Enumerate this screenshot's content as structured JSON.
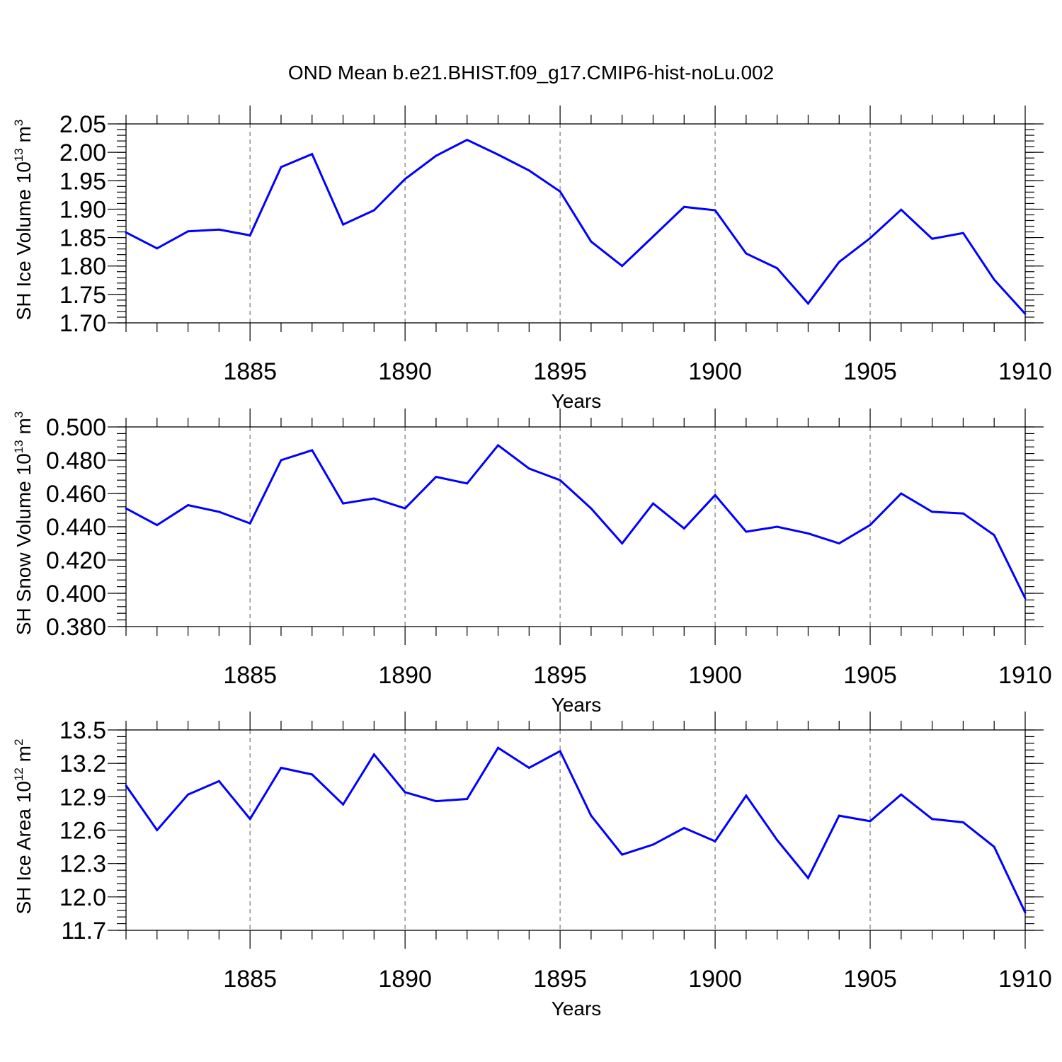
{
  "title": "OND Mean b.e21.BHIST.f09_g17.CMIP6-hist-noLu.002",
  "colors": {
    "line": "#0000ff",
    "grid": "#777777",
    "axis": "#000000"
  },
  "chart_data": [
    {
      "type": "line",
      "ylabel": "SH Ice Volume 10",
      "ylabel_exp": "13",
      "ylabel_unit": "m",
      "ylabel_unit_exp": "3",
      "xlabel": "Years",
      "xlim": [
        1881,
        1910
      ],
      "ylim": [
        1.7,
        2.05
      ],
      "yticks": [
        1.7,
        1.75,
        1.8,
        1.85,
        1.9,
        1.95,
        2.0,
        2.05
      ],
      "yticklabels": [
        "1.70",
        "1.75",
        "1.80",
        "1.85",
        "1.90",
        "1.95",
        "2.00",
        "2.05"
      ],
      "yminor": 0.01,
      "xticks": [
        1885,
        1890,
        1895,
        1900,
        1905,
        1910
      ],
      "xticklabels": [
        "1885",
        "1890",
        "1895",
        "1900",
        "1905",
        "1910"
      ],
      "x": [
        1881,
        1882,
        1883,
        1884,
        1885,
        1886,
        1887,
        1888,
        1889,
        1890,
        1891,
        1892,
        1893,
        1894,
        1895,
        1896,
        1897,
        1898,
        1899,
        1900,
        1901,
        1902,
        1903,
        1904,
        1905,
        1906,
        1907,
        1908,
        1909,
        1910
      ],
      "values": [
        1.859,
        1.831,
        1.861,
        1.864,
        1.854,
        1.974,
        1.997,
        1.873,
        1.898,
        1.953,
        1.994,
        2.022,
        1.996,
        1.968,
        1.931,
        1.843,
        1.8,
        1.852,
        1.904,
        1.898,
        1.822,
        1.796,
        1.734,
        1.807,
        1.849,
        1.899,
        1.848,
        1.858,
        1.776,
        1.716
      ]
    },
    {
      "type": "line",
      "ylabel": "SH Snow Volume 10",
      "ylabel_exp": "13",
      "ylabel_unit": "m",
      "ylabel_unit_exp": "3",
      "xlabel": "Years",
      "xlim": [
        1881,
        1910
      ],
      "ylim": [
        0.38,
        0.5
      ],
      "yticks": [
        0.38,
        0.4,
        0.42,
        0.44,
        0.46,
        0.48,
        0.5
      ],
      "yticklabels": [
        "0.380",
        "0.400",
        "0.420",
        "0.440",
        "0.460",
        "0.480",
        "0.500"
      ],
      "yminor": 0.004,
      "xticks": [
        1885,
        1890,
        1895,
        1900,
        1905,
        1910
      ],
      "xticklabels": [
        "1885",
        "1890",
        "1895",
        "1900",
        "1905",
        "1910"
      ],
      "x": [
        1881,
        1882,
        1883,
        1884,
        1885,
        1886,
        1887,
        1888,
        1889,
        1890,
        1891,
        1892,
        1893,
        1894,
        1895,
        1896,
        1897,
        1898,
        1899,
        1900,
        1901,
        1902,
        1903,
        1904,
        1905,
        1906,
        1907,
        1908,
        1909,
        1910
      ],
      "values": [
        0.451,
        0.441,
        0.453,
        0.449,
        0.442,
        0.48,
        0.486,
        0.454,
        0.457,
        0.451,
        0.47,
        0.466,
        0.489,
        0.475,
        0.468,
        0.451,
        0.43,
        0.454,
        0.439,
        0.459,
        0.437,
        0.44,
        0.436,
        0.43,
        0.441,
        0.46,
        0.449,
        0.448,
        0.435,
        0.397
      ]
    },
    {
      "type": "line",
      "ylabel": "SH Ice Area 10",
      "ylabel_exp": "12",
      "ylabel_unit": "m",
      "ylabel_unit_exp": "2",
      "xlabel": "Years",
      "xlim": [
        1881,
        1910
      ],
      "ylim": [
        11.7,
        13.5
      ],
      "yticks": [
        11.7,
        12.0,
        12.3,
        12.6,
        12.9,
        13.2,
        13.5
      ],
      "yticklabels": [
        "11.7",
        "12.0",
        "12.3",
        "12.6",
        "12.9",
        "13.2",
        "13.5"
      ],
      "yminor": 0.06,
      "xticks": [
        1885,
        1890,
        1895,
        1900,
        1905,
        1910
      ],
      "xticklabels": [
        "1885",
        "1890",
        "1895",
        "1900",
        "1905",
        "1910"
      ],
      "x": [
        1881,
        1882,
        1883,
        1884,
        1885,
        1886,
        1887,
        1888,
        1889,
        1890,
        1891,
        1892,
        1893,
        1894,
        1895,
        1896,
        1897,
        1898,
        1899,
        1900,
        1901,
        1902,
        1903,
        1904,
        1905,
        1906,
        1907,
        1908,
        1909,
        1910
      ],
      "values": [
        13.0,
        12.6,
        12.92,
        13.04,
        12.7,
        13.16,
        13.1,
        12.83,
        13.28,
        12.94,
        12.86,
        12.88,
        13.34,
        13.16,
        13.31,
        12.73,
        12.38,
        12.47,
        12.62,
        12.5,
        12.91,
        12.51,
        12.17,
        12.73,
        12.68,
        12.92,
        12.7,
        12.67,
        12.45,
        11.86
      ]
    }
  ]
}
